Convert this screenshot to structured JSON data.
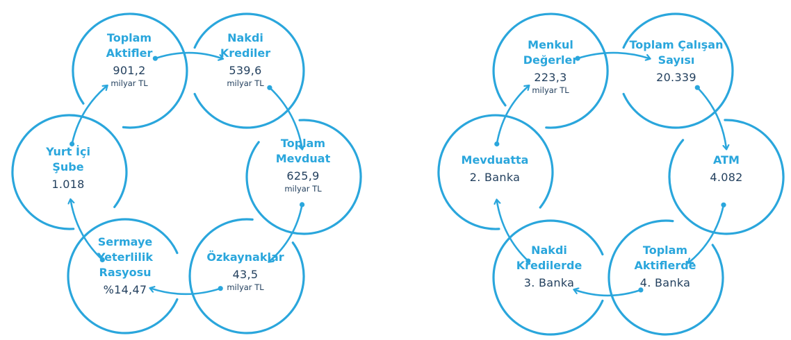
{
  "colors": {
    "ring": "#2aa6dc",
    "label": "#2aa6dc",
    "value": "#23405e"
  },
  "left_cycle": {
    "nodes": [
      {
        "label_lines": [
          "Toplam",
          "Aktifler"
        ],
        "value": "901,2",
        "unit": "milyar TL"
      },
      {
        "label_lines": [
          "Nakdi",
          "Krediler"
        ],
        "value": "539,6",
        "unit": "milyar TL"
      },
      {
        "label_lines": [
          "Toplam",
          "Mevduat"
        ],
        "value": "625,9",
        "unit": "milyar TL"
      },
      {
        "label_lines": [
          "Özkaynaklar"
        ],
        "value": "43,5",
        "unit": "milyar TL"
      },
      {
        "label_lines": [
          "Sermaye",
          "Yeterlilik",
          "Rasyosu"
        ],
        "value": "%14,47",
        "unit": ""
      },
      {
        "label_lines": [
          "Yurt İçi",
          "Şube"
        ],
        "value": "1.018",
        "unit": ""
      }
    ]
  },
  "right_cycle": {
    "nodes": [
      {
        "label_lines": [
          "Menkul",
          "Değerler"
        ],
        "value": "223,3",
        "unit": "milyar TL"
      },
      {
        "label_lines": [
          "Toplam Çalışan",
          "Sayısı"
        ],
        "value": "20.339",
        "unit": ""
      },
      {
        "label_lines": [
          "ATM"
        ],
        "value": "4.082",
        "unit": ""
      },
      {
        "label_lines": [
          "Toplam",
          "Aktiflerde"
        ],
        "value": "4. Banka",
        "unit": ""
      },
      {
        "label_lines": [
          "Nakdi",
          "Kredilerde"
        ],
        "value": "3. Banka",
        "unit": ""
      },
      {
        "label_lines": [
          "Mevduatta"
        ],
        "value": "2. Banka",
        "unit": ""
      }
    ]
  }
}
